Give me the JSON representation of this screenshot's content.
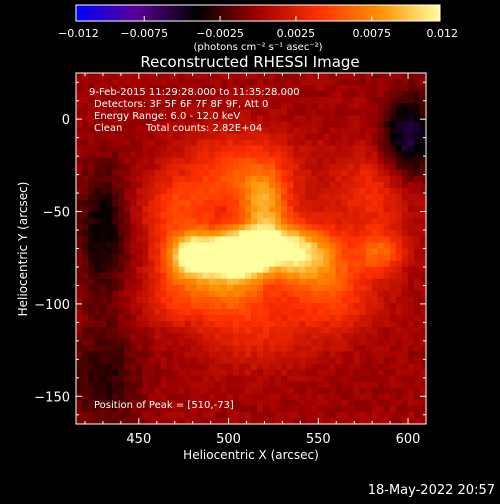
{
  "chart_data": {
    "type": "heatmap",
    "title": "Reconstructed RHESSI Image",
    "xlabel": "Heliocentric X (arcsec)",
    "ylabel": "Heliocentric Y (arcsec)",
    "xlim": [
      415,
      610
    ],
    "ylim": [
      -165,
      25
    ],
    "x_ticks": [
      450,
      500,
      550,
      600
    ],
    "y_ticks": [
      0,
      -50,
      -100,
      -150
    ],
    "annotations": [
      "9-Feb-2015 11:29:28.000 to 11:35:28.000",
      "Detectors: 3F 5F 6F 7F 8F 9F, Att 0",
      "Energy Range: 6.0 - 12.0 keV",
      "Clean",
      "Total counts: 2.82E+04",
      "Position of Peak = [510,-73]"
    ],
    "peak": {
      "x": 510,
      "y": -73
    },
    "colorbar": {
      "range": [
        -0.012,
        0.012
      ],
      "ticks": [
        "-0.012",
        "-0.0075",
        "-0.0025",
        "0.0025",
        "0.0075",
        "0.012"
      ],
      "label": "(photons cm⁻² s⁻¹ asec⁻²)",
      "colors": [
        "#0000ff",
        "#5a0096",
        "#000000",
        "#a00000",
        "#ff3000",
        "#ff9000",
        "#ffffa0"
      ]
    },
    "sources": [
      {
        "x": 508,
        "y": -73,
        "amplitude": 0.012,
        "sx": 9,
        "sy": 8
      },
      {
        "x": 490,
        "y": -73,
        "amplitude": 0.009,
        "sx": 16,
        "sy": 9
      },
      {
        "x": 527,
        "y": -70,
        "amplitude": 0.0085,
        "sx": 15,
        "sy": 9
      },
      {
        "x": 520,
        "y": -48,
        "amplitude": 0.0065,
        "sx": 9,
        "sy": 14
      },
      {
        "x": 480,
        "y": -74,
        "amplitude": 0.0065,
        "sx": 10,
        "sy": 8
      },
      {
        "x": 500,
        "y": -92,
        "amplitude": 0.0055,
        "sx": 16,
        "sy": 11
      },
      {
        "x": 545,
        "y": -75,
        "amplitude": 0.006,
        "sx": 15,
        "sy": 13
      },
      {
        "x": 560,
        "y": -95,
        "amplitude": 0.004,
        "sx": 18,
        "sy": 16
      },
      {
        "x": 585,
        "y": -72,
        "amplitude": 0.005,
        "sx": 9,
        "sy": 8
      },
      {
        "x": 505,
        "y": -30,
        "amplitude": 0.005,
        "sx": 24,
        "sy": 16
      },
      {
        "x": 470,
        "y": -50,
        "amplitude": 0.004,
        "sx": 14,
        "sy": 12
      },
      {
        "x": 470,
        "y": -95,
        "amplitude": 0.0035,
        "sx": 14,
        "sy": 12
      },
      {
        "x": 515,
        "y": -115,
        "amplitude": 0.003,
        "sx": 22,
        "sy": 14
      },
      {
        "x": 580,
        "y": -40,
        "amplitude": 0.0035,
        "sx": 16,
        "sy": 18
      },
      {
        "x": 600,
        "y": -10,
        "amplitude": -0.006,
        "sx": 10,
        "sy": 16
      },
      {
        "x": 430,
        "y": -60,
        "amplitude": -0.004,
        "sx": 10,
        "sy": 25
      },
      {
        "x": 430,
        "y": -140,
        "amplitude": -0.003,
        "sx": 14,
        "sy": 20
      }
    ]
  },
  "footer": {
    "timestamp": "18-May-2022 20:57"
  }
}
